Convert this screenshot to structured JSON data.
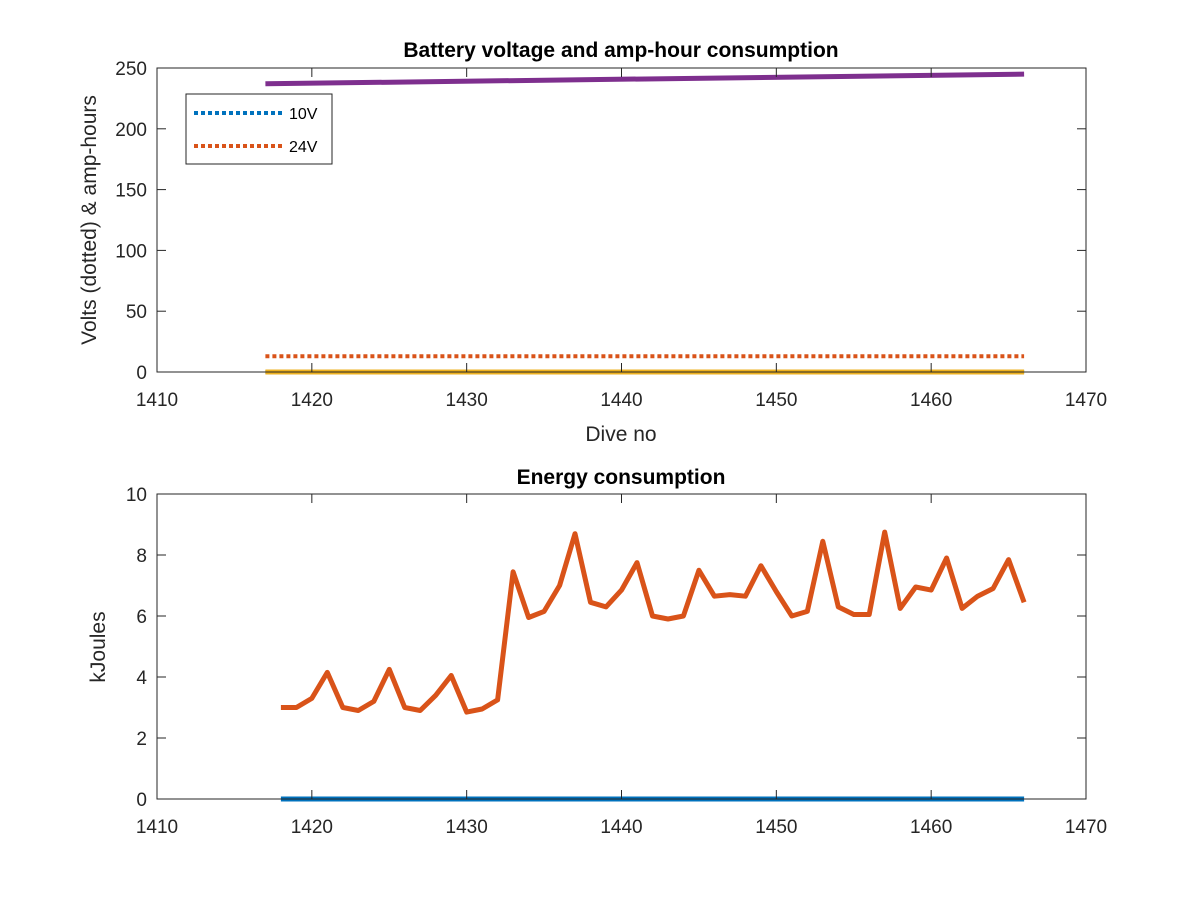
{
  "chart_data": [
    {
      "type": "line",
      "title": "Battery voltage and amp-hour consumption",
      "xlabel": "Dive no",
      "ylabel": "Volts (dotted) & amp-hours",
      "xlim": [
        1410,
        1470
      ],
      "ylim": [
        0,
        250
      ],
      "xticks": [
        1410,
        1420,
        1430,
        1440,
        1450,
        1460,
        1470
      ],
      "yticks": [
        0,
        50,
        100,
        150,
        200,
        250
      ],
      "grid": false,
      "legend_location": "top-left",
      "series": [
        {
          "name": "10V",
          "style": "dotted",
          "color": "#0072BD",
          "x": [
            1417,
            1466
          ],
          "y": [
            0,
            0
          ],
          "in_legend": true
        },
        {
          "name": "24V",
          "style": "dotted",
          "color": "#D95319",
          "x": [
            1417,
            1466
          ],
          "y": [
            13,
            13
          ],
          "in_legend": true
        },
        {
          "style": "solid",
          "color": "#EDB120",
          "x": [
            1417,
            1466
          ],
          "y": [
            0,
            0
          ],
          "in_legend": false
        },
        {
          "style": "solid",
          "color": "#7E2F8E",
          "x": [
            1417,
            1466
          ],
          "y": [
            237,
            245
          ],
          "in_legend": false
        }
      ]
    },
    {
      "type": "line",
      "title": "Energy consumption",
      "xlabel": "",
      "ylabel": "kJoules",
      "xlim": [
        1410,
        1470
      ],
      "ylim": [
        0,
        10
      ],
      "xticks": [
        1410,
        1420,
        1430,
        1440,
        1450,
        1460,
        1470
      ],
      "yticks": [
        0,
        2,
        4,
        6,
        8,
        10
      ],
      "grid": false,
      "series": [
        {
          "style": "solid",
          "color": "#0072BD",
          "x": [
            1418,
            1466
          ],
          "y": [
            0,
            0
          ]
        },
        {
          "style": "solid",
          "color": "#D95319",
          "x": [
            1418,
            1419,
            1420,
            1421,
            1422,
            1423,
            1424,
            1425,
            1426,
            1427,
            1428,
            1429,
            1430,
            1431,
            1432,
            1433,
            1434,
            1435,
            1436,
            1437,
            1438,
            1439,
            1440,
            1441,
            1442,
            1443,
            1444,
            1445,
            1446,
            1447,
            1448,
            1449,
            1450,
            1451,
            1452,
            1453,
            1454,
            1455,
            1456,
            1457,
            1458,
            1459,
            1460,
            1461,
            1462,
            1463,
            1464,
            1465,
            1466
          ],
          "y": [
            3.0,
            3.0,
            3.3,
            4.15,
            3.0,
            2.9,
            3.2,
            4.25,
            3.0,
            2.9,
            3.4,
            4.05,
            2.85,
            2.95,
            3.25,
            7.45,
            5.95,
            6.15,
            7.0,
            8.7,
            6.45,
            6.3,
            6.85,
            7.75,
            6.0,
            5.9,
            6.0,
            7.5,
            6.65,
            6.7,
            6.65,
            7.65,
            6.8,
            6.0,
            6.15,
            8.45,
            6.3,
            6.05,
            6.05,
            8.75,
            6.25,
            6.95,
            6.85,
            7.9,
            6.25,
            6.65,
            6.9,
            7.85,
            6.45
          ]
        }
      ]
    }
  ]
}
